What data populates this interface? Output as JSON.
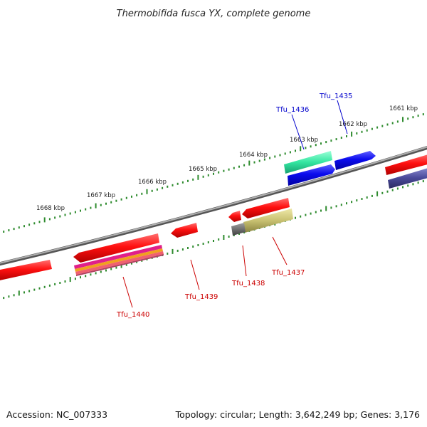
{
  "title": "Thermobifida fusca YX, complete genome",
  "footer": {
    "accession": "Accession: NC_007333",
    "topology": "Topology: circular; Length: 3,642,249 bp; Genes: 3,176"
  },
  "tick_labels": [
    "1661 kbp",
    "1662 kbp",
    "1663 kbp",
    "1664 kbp",
    "1665 kbp",
    "1666 kbp",
    "1667 kbp",
    "1668 kbp"
  ],
  "gene_labels": [
    {
      "name": "Tfu_1435",
      "strand": "forward",
      "color": "#0000cc"
    },
    {
      "name": "Tfu_1436",
      "strand": "forward",
      "color": "#0000cc"
    },
    {
      "name": "Tfu_1437",
      "strand": "reverse",
      "color": "#cc0000"
    },
    {
      "name": "Tfu_1438",
      "strand": "reverse",
      "color": "#cc0000"
    },
    {
      "name": "Tfu_1439",
      "strand": "reverse",
      "color": "#cc0000"
    },
    {
      "name": "Tfu_1440",
      "strand": "reverse",
      "color": "#cc0000"
    }
  ],
  "colors": {
    "backbone": "#8a8a8a",
    "ruler": "#2e8b2e",
    "forward_gene": "#1010ee",
    "reverse_gene": "#ee1111",
    "cog_teal": "#33e6a0",
    "cog_navy": "#4a4a9a",
    "cog_khaki": "#c8c070",
    "cog_gray": "#707070",
    "cog_magenta": "#e0208a",
    "cog_orange": "#f0a020"
  }
}
